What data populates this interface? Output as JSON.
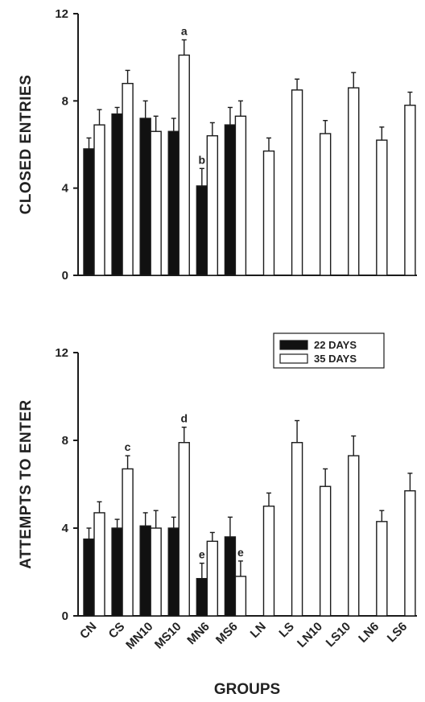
{
  "chart_data": {
    "type": "bar",
    "categories": [
      "CN",
      "CS",
      "MN10",
      "MS10",
      "MN6",
      "MS6",
      "LN",
      "LS",
      "LN10",
      "LS10",
      "LN6",
      "LS6"
    ],
    "xlabel": "GROUPS",
    "legend": {
      "placement": "top-right of lower panel",
      "entries": [
        "22 DAYS",
        "35 DAYS"
      ]
    },
    "colors": {
      "22 DAYS": "#111111",
      "35 DAYS": "#ffffff"
    },
    "panels": [
      {
        "ylabel": "CLOSED ENTRIES",
        "ylim": [
          0,
          12
        ],
        "yticks": [
          "0",
          "4",
          "8",
          "12"
        ],
        "series": [
          {
            "name": "22 DAYS",
            "values": [
              5.8,
              7.4,
              7.2,
              6.6,
              4.1,
              6.9,
              null,
              null,
              null,
              null,
              null,
              null
            ],
            "errors": [
              0.5,
              0.3,
              0.8,
              0.6,
              0.8,
              0.8,
              null,
              null,
              null,
              null,
              null,
              null
            ]
          },
          {
            "name": "35 DAYS",
            "values": [
              6.9,
              8.8,
              6.6,
              10.1,
              6.4,
              7.3,
              5.7,
              8.5,
              6.5,
              8.6,
              6.2,
              7.8
            ],
            "errors": [
              0.7,
              0.6,
              0.7,
              0.7,
              0.6,
              0.7,
              0.6,
              0.5,
              0.6,
              0.7,
              0.6,
              0.6
            ]
          }
        ],
        "annotations": [
          {
            "text": "a",
            "category": "MS10",
            "series": "35 DAYS"
          },
          {
            "text": "b",
            "category": "MN6",
            "series": "22 DAYS"
          }
        ]
      },
      {
        "ylabel": "ATTEMPTS TO ENTER",
        "ylim": [
          0,
          12
        ],
        "yticks": [
          "0",
          "4",
          "8",
          "12"
        ],
        "series": [
          {
            "name": "22 DAYS",
            "values": [
              3.5,
              4.0,
              4.1,
              4.0,
              1.7,
              3.6,
              null,
              null,
              null,
              null,
              null,
              null
            ],
            "errors": [
              0.5,
              0.4,
              0.6,
              0.5,
              0.7,
              0.9,
              null,
              null,
              null,
              null,
              null,
              null
            ]
          },
          {
            "name": "35 DAYS",
            "values": [
              4.7,
              6.7,
              4.0,
              7.9,
              3.4,
              1.8,
              5.0,
              7.9,
              5.9,
              7.3,
              4.3,
              5.7
            ],
            "errors": [
              0.5,
              0.6,
              0.8,
              0.7,
              0.4,
              0.7,
              0.6,
              1.0,
              0.8,
              0.9,
              0.5,
              0.8
            ]
          }
        ],
        "annotations": [
          {
            "text": "c",
            "category": "CS",
            "series": "35 DAYS"
          },
          {
            "text": "d",
            "category": "MS10",
            "series": "35 DAYS"
          },
          {
            "text": "e",
            "category": "MN6",
            "series": "22 DAYS"
          },
          {
            "text": "e",
            "category": "MS6",
            "series": "35 DAYS"
          }
        ]
      }
    ]
  }
}
